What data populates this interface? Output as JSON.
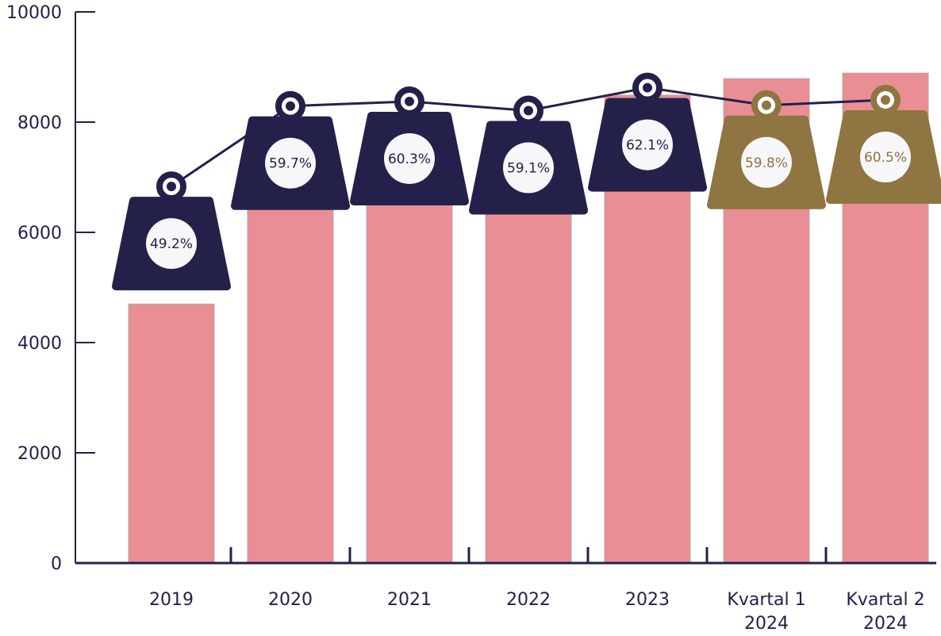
{
  "chart_data": {
    "type": "bar",
    "categories": [
      "2019",
      "2020",
      "2021",
      "2022",
      "2023",
      "Kvartal 1 2024",
      "Kvartal 2 2024"
    ],
    "series": [
      {
        "type": "bar",
        "color": "#e88e94",
        "values": [
          4700,
          7400,
          7600,
          7740,
          8490,
          8790,
          8890
        ]
      },
      {
        "type": "line",
        "axis": "y2",
        "color": "#23214a",
        "colors": [
          "#23214a",
          "#23214a",
          "#23214a",
          "#23214a",
          "#23214a",
          "#8f7541",
          "#8f7541"
        ],
        "values": [
          49.2,
          59.7,
          60.3,
          59.1,
          62.1,
          59.8,
          60.5
        ],
        "value_labels": [
          "49.2%",
          "59.7%",
          "60.3%",
          "59.1%",
          "62.1%",
          "59.8%",
          "60.5%"
        ]
      }
    ],
    "ylim": [
      0,
      10000
    ],
    "yticks": [
      0,
      2000,
      4000,
      6000,
      8000,
      10000
    ],
    "y2lim": [
      0,
      72
    ]
  }
}
